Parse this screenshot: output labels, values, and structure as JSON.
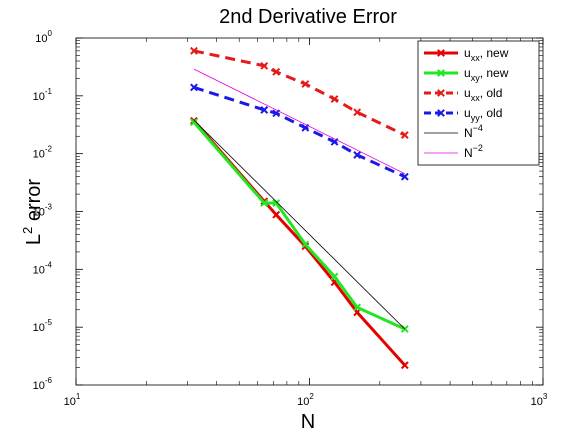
{
  "chart_data": {
    "type": "line",
    "title": "2nd Derivative Error",
    "xlabel": "N",
    "ylabel_base": "L",
    "ylabel_sup": "2",
    "ylabel_rest": " error",
    "x_scale": "log",
    "y_scale": "log",
    "xlim": [
      10,
      1000
    ],
    "ylim": [
      1e-06,
      1
    ],
    "x_ticks": [
      {
        "value": 10,
        "base": "10",
        "exp": "1"
      },
      {
        "value": 100,
        "base": "10",
        "exp": "2"
      },
      {
        "value": 1000,
        "base": "10",
        "exp": "3"
      }
    ],
    "y_ticks": [
      {
        "value": 1,
        "base": "10",
        "exp": "0"
      },
      {
        "value": 0.1,
        "base": "10",
        "exp": "-1"
      },
      {
        "value": 0.01,
        "base": "10",
        "exp": "-2"
      },
      {
        "value": 0.001,
        "base": "10",
        "exp": "-3"
      },
      {
        "value": 0.0001,
        "base": "10",
        "exp": "-4"
      },
      {
        "value": 1e-05,
        "base": "10",
        "exp": "-5"
      },
      {
        "value": 1e-06,
        "base": "10",
        "exp": "-6"
      }
    ],
    "grid": false,
    "legend_position": "top-right",
    "series": [
      {
        "legend_main": "u",
        "legend_sub": "xx",
        "legend_rest": ", new",
        "color": "#e60000",
        "dash": "solid",
        "width": 3,
        "marker": "x",
        "x": [
          32,
          64,
          72,
          96,
          128,
          160,
          256
        ],
        "y": [
          0.037,
          0.0015,
          0.00088,
          0.00025,
          6e-05,
          1.8e-05,
          2.2e-06
        ]
      },
      {
        "legend_main": "u",
        "legend_sub": "xy",
        "legend_rest": ", new",
        "color": "#22e622",
        "dash": "solid",
        "width": 3,
        "marker": "x",
        "x": [
          32,
          64,
          72,
          96,
          128,
          160,
          256
        ],
        "y": [
          0.035,
          0.0014,
          0.0014,
          0.00027,
          7.5e-05,
          2.2e-05,
          9.3e-06
        ]
      },
      {
        "legend_main": "u",
        "legend_sub": "xx",
        "legend_rest": ", old",
        "color": "#e61a1a",
        "dash": "dashed",
        "width": 3,
        "marker": "x",
        "x": [
          32,
          64,
          72,
          96,
          128,
          160,
          256
        ],
        "y": [
          0.6,
          0.33,
          0.26,
          0.16,
          0.088,
          0.052,
          0.021
        ]
      },
      {
        "legend_main": "u",
        "legend_sub": "yy",
        "legend_rest": ", old",
        "color": "#1a1ae6",
        "dash": "dashed",
        "width": 3,
        "marker": "x",
        "x": [
          32,
          64,
          72,
          96,
          128,
          160,
          256
        ],
        "y": [
          0.14,
          0.057,
          0.05,
          0.028,
          0.016,
          0.0095,
          0.004
        ]
      },
      {
        "legend_main": "N",
        "legend_sup": "−4",
        "color": "#000000",
        "dash": "solid",
        "width": 0.8,
        "marker": "none",
        "x": [
          32,
          256
        ],
        "y": [
          0.038,
          9.3e-06
        ]
      },
      {
        "legend_main": "N",
        "legend_sup": "−2",
        "color": "#e600e6",
        "dash": "solid",
        "width": 0.8,
        "marker": "none",
        "x": [
          32,
          256
        ],
        "y": [
          0.29,
          0.0045
        ]
      }
    ]
  }
}
